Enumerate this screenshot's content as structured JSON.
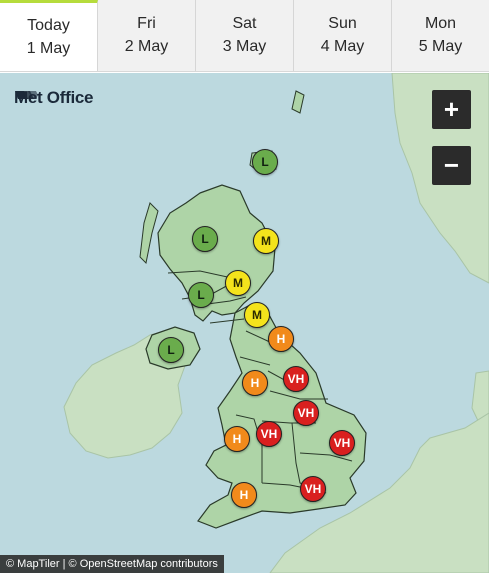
{
  "tabs": [
    {
      "day": "Today",
      "date": "1 May",
      "active": true
    },
    {
      "day": "Fri",
      "date": "2 May",
      "active": false
    },
    {
      "day": "Sat",
      "date": "3 May",
      "active": false
    },
    {
      "day": "Sun",
      "date": "4 May",
      "active": false
    },
    {
      "day": "Mon",
      "date": "5 May",
      "active": false
    }
  ],
  "map": {
    "brand": "Met Office",
    "zoom_in_label": "+",
    "zoom_out_label": "−",
    "attribution": {
      "maptiler": "© MapTiler",
      "separator": "|",
      "osm": "© OpenStreetMap contributors"
    },
    "markers": [
      {
        "region": "Orkney & Shetland",
        "level": "low",
        "label": "L"
      },
      {
        "region": "Highlands & Eilean Siar",
        "level": "low",
        "label": "L"
      },
      {
        "region": "Grampian",
        "level": "moderate",
        "label": "M"
      },
      {
        "region": "Central, Tayside & Fife",
        "level": "moderate",
        "label": "M"
      },
      {
        "region": "Strathclyde",
        "level": "low",
        "label": "L"
      },
      {
        "region": "SW Scotland, Lothian & Borders",
        "level": "moderate",
        "label": "M"
      },
      {
        "region": "Northern Ireland",
        "level": "low",
        "label": "L"
      },
      {
        "region": "North East England",
        "level": "high",
        "label": "H"
      },
      {
        "region": "North West England",
        "level": "high",
        "label": "H"
      },
      {
        "region": "Yorkshire & Humber",
        "level": "very high",
        "label": "VH"
      },
      {
        "region": "East Midlands",
        "level": "very high",
        "label": "VH"
      },
      {
        "region": "Wales",
        "level": "high",
        "label": "H"
      },
      {
        "region": "West Midlands",
        "level": "very high",
        "label": "VH"
      },
      {
        "region": "East of England",
        "level": "very high",
        "label": "VH"
      },
      {
        "region": "South West England",
        "level": "high",
        "label": "H"
      },
      {
        "region": "London & South East",
        "level": "very high",
        "label": "VH"
      }
    ],
    "colors": {
      "sea": "#bcd9df",
      "uk_land": "#aed4a7",
      "other_land": "#c9e0c2",
      "low": "#6aac4c",
      "moderate": "#f4e31c",
      "high": "#f18a1b",
      "very_high": "#d9201f",
      "active_tab_accent": "#b6dc3c"
    }
  }
}
